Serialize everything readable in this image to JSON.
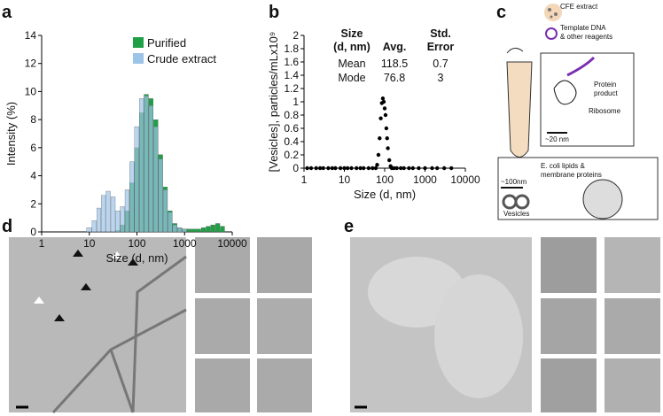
{
  "panel_labels": [
    "a",
    "b",
    "c",
    "d",
    "e"
  ],
  "chart_data": [
    {
      "type": "bar",
      "xlabel": "Size (d, nm)",
      "ylabel": "Intensity (%)",
      "log_x": true,
      "xlim": [
        1,
        10000
      ],
      "xticks": [
        1,
        10,
        100,
        1000,
        10000
      ],
      "ylim": [
        0,
        14
      ],
      "yticks": [
        0,
        2,
        4,
        6,
        8,
        10,
        12,
        14
      ],
      "legend": "upper right",
      "x": [
        10,
        13,
        16,
        20,
        25,
        32,
        40,
        50,
        63,
        79,
        100,
        126,
        158,
        200,
        251,
        316,
        398,
        501,
        631,
        794,
        1000,
        1259,
        1585,
        1995,
        2512,
        3162,
        3981,
        5012,
        6310
      ],
      "series": [
        {
          "name": "Purified",
          "color": "#1fa046",
          "values": [
            0,
            0,
            0,
            0,
            0,
            0,
            0.1,
            0.5,
            1.5,
            3.5,
            6,
            8.5,
            9.8,
            9.5,
            8,
            5.5,
            3.2,
            1.5,
            0.6,
            0.3,
            0.2,
            0.2,
            0.2,
            0.2,
            0.3,
            0.4,
            0.5,
            0.6,
            0.4
          ]
        },
        {
          "name": "Crude extract",
          "color": "#9cc3e8",
          "values": [
            0.3,
            0.8,
            1.7,
            2.6,
            2.9,
            2.5,
            1.5,
            1.8,
            3,
            5,
            7.5,
            9.5,
            9.7,
            9,
            7.5,
            5.2,
            3,
            1.4,
            0.5,
            0.3,
            0.2,
            0,
            0,
            0,
            0,
            0,
            0,
            0,
            0
          ]
        }
      ]
    },
    {
      "type": "scatter",
      "xlabel": "Size (d, nm)",
      "ylabel": "[Vesicles], particles/mLx10⁹",
      "log_x": true,
      "color": "#000000",
      "xlim": [
        1,
        10000
      ],
      "xticks": [
        1,
        10,
        100,
        1000,
        10000
      ],
      "ylim": [
        0,
        2
      ],
      "yticks": [
        0,
        0.2,
        0.4,
        0.6,
        0.8,
        1,
        1.2,
        1.4,
        1.6,
        1.8,
        2
      ],
      "x": [
        1.2,
        1.5,
        2,
        2.5,
        3,
        4,
        5,
        6,
        8,
        10,
        12,
        15,
        20,
        25,
        30,
        40,
        50,
        60,
        65,
        70,
        75,
        80,
        85,
        90,
        95,
        100,
        105,
        110,
        115,
        120,
        130,
        140,
        150,
        170,
        200,
        250,
        300,
        400,
        500,
        700,
        1000,
        1500,
        2000,
        3000,
        4500
      ],
      "values": [
        0,
        0,
        0,
        0,
        0,
        0,
        0,
        0,
        0,
        0,
        0,
        0,
        0,
        0,
        0,
        0,
        0,
        0,
        0.05,
        0.2,
        0.45,
        0.75,
        0.98,
        1.05,
        1,
        0.9,
        0.8,
        0.6,
        0.45,
        0.3,
        0.12,
        0.03,
        0,
        0,
        0,
        0,
        0,
        0,
        0,
        0,
        0,
        0,
        0,
        0,
        0
      ],
      "table": {
        "header": [
          [
            "Size",
            "(d, nm)"
          ],
          "Avg.",
          [
            "Std.",
            "Error"
          ]
        ],
        "rows": [
          [
            "Mean",
            "118.5",
            "0.7"
          ],
          [
            "Mode",
            "76.8",
            "3"
          ]
        ]
      }
    }
  ],
  "diagram": {
    "cfe": "CFE extract",
    "template": [
      "Template DNA",
      "& other reagents"
    ],
    "protein": [
      "Protein",
      "product"
    ],
    "ribosome": "Ribosome",
    "ribo_scale": "~20 nm",
    "lipids": [
      "E. coli lipids &",
      "membrane proteins"
    ],
    "ves_scale": "~100nm",
    "vesicles": "Vesicles"
  }
}
